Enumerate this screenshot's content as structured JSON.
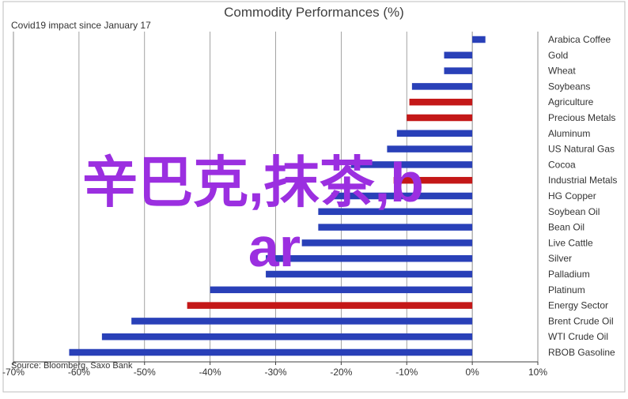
{
  "chart_data": {
    "type": "bar",
    "orientation": "horizontal",
    "title": "Commodity Performances (%)",
    "subtitle": "Covid19 impact since January 17",
    "source": "Source: Bloomberg, Saxo Bank",
    "overlay_text": [
      "辛巴克,抹茶,b",
      "ar"
    ],
    "xlim": [
      -70,
      10
    ],
    "xticks": [
      -70,
      -60,
      -50,
      -40,
      -30,
      -20,
      -10,
      0,
      10
    ],
    "xtick_labels": [
      "-70%",
      "-60%",
      "-50%",
      "-40%",
      "-30%",
      "-20%",
      "-10%",
      "0%",
      "10%"
    ],
    "grid": true,
    "categories": [
      "Arabica Coffee",
      "Gold",
      "Wheat",
      "Soybeans",
      "Agriculture",
      "Precious Metals",
      "Aluminum",
      "US Natural Gas",
      "Cocoa",
      "Industrial Metals",
      "HG Copper",
      "Soybean Oil",
      "Bean Oil",
      "Live Cattle",
      "Silver",
      "Palladium",
      "Platinum",
      "Energy Sector",
      "Brent Crude Oil",
      "WTI Crude Oil",
      "RBOB Gasoline"
    ],
    "values": [
      2,
      -4.3,
      -4.3,
      -9.2,
      -9.6,
      -10,
      -11.5,
      -13,
      -18.5,
      -12,
      -21.5,
      -23.5,
      -23.5,
      -26,
      -31.5,
      -31.5,
      -40,
      -43.5,
      -52,
      -56.5,
      -61.5
    ],
    "bar_colors": [
      "#2940b8",
      "#2940b8",
      "#2940b8",
      "#2940b8",
      "#c41818",
      "#c41818",
      "#2940b8",
      "#2940b8",
      "#2940b8",
      "#c41818",
      "#2940b8",
      "#2940b8",
      "#2940b8",
      "#2940b8",
      "#2940b8",
      "#2940b8",
      "#2940b8",
      "#c41818",
      "#2940b8",
      "#2940b8",
      "#2940b8"
    ],
    "colors": {
      "series": "#2940b8",
      "sector": "#c41818",
      "overlay": "#9b2fe0",
      "grid": "#8c8c8c",
      "axis": "#404040"
    }
  }
}
